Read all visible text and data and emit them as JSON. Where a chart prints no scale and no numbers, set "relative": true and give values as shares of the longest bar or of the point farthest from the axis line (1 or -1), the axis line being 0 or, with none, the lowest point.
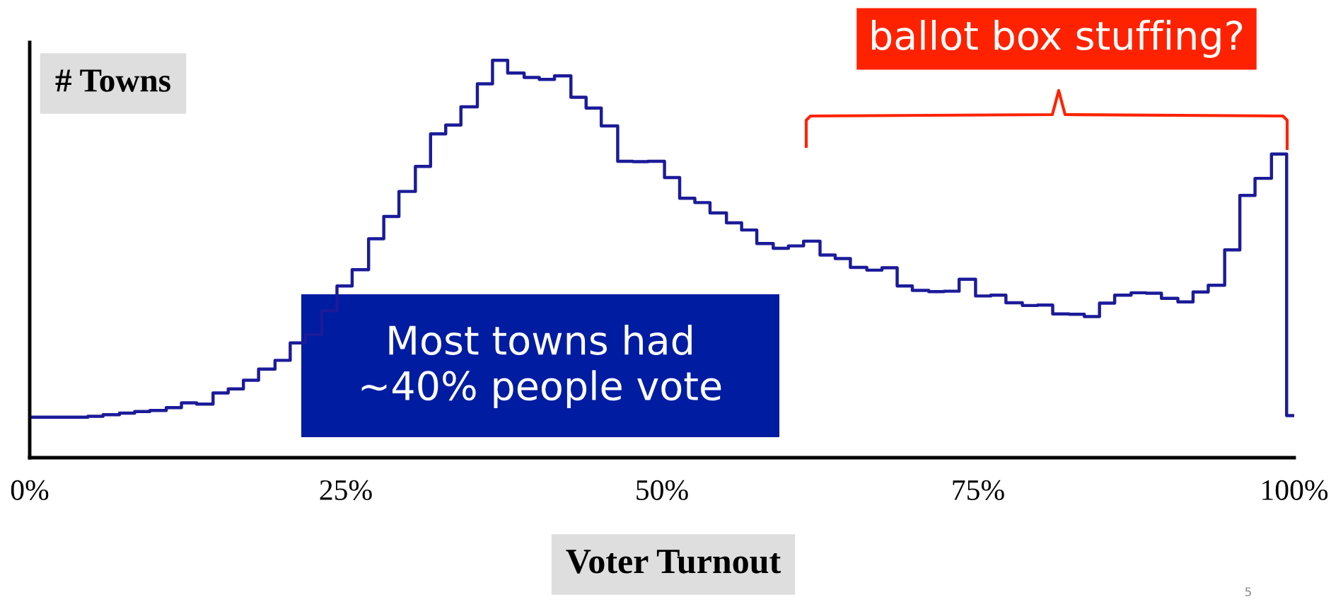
{
  "chart_data": {
    "type": "step",
    "relative": true,
    "xlabel": "Voter Turnout",
    "ylabel": "# Towns",
    "color": "#1b1b99",
    "xlim": [
      0,
      100
    ],
    "xticks": [
      {
        "value": 0,
        "label": "0%"
      },
      {
        "value": 25,
        "label": "25%"
      },
      {
        "value": 50,
        "label": "50%"
      },
      {
        "value": 75,
        "label": "75%"
      },
      {
        "value": 100,
        "label": "100%"
      }
    ],
    "tick_labels": "x",
    "x": [
      0,
      4.6,
      5.8,
      7.1,
      8.3,
      9.5,
      10.8,
      12.0,
      13.2,
      14.5,
      15.7,
      16.9,
      18.1,
      19.4,
      20.6,
      21.8,
      23.1,
      24.3,
      25.5,
      26.8,
      28.0,
      29.2,
      30.5,
      31.7,
      32.9,
      34.1,
      35.4,
      36.6,
      37.8,
      39.1,
      40.3,
      41.5,
      42.8,
      44.0,
      45.2,
      46.5,
      47.7,
      48.9,
      50.2,
      51.4,
      52.6,
      53.8,
      55.1,
      56.3,
      57.5,
      58.8,
      60.0,
      61.2,
      62.5,
      63.7,
      64.9,
      66.2,
      67.4,
      68.6,
      69.8,
      71.1,
      72.3,
      73.5,
      74.8,
      76.0,
      77.2,
      78.5,
      79.7,
      80.9,
      82.2,
      83.4,
      84.6,
      85.8,
      87.1,
      88.3,
      89.5,
      90.8,
      92.0,
      93.2,
      94.5,
      95.7,
      96.9,
      98.2,
      99.4,
      100
    ],
    "values": [
      0.102,
      0.104,
      0.108,
      0.112,
      0.116,
      0.119,
      0.126,
      0.138,
      0.135,
      0.163,
      0.173,
      0.195,
      0.223,
      0.245,
      0.289,
      0.31,
      0.37,
      0.432,
      0.473,
      0.551,
      0.607,
      0.67,
      0.733,
      0.815,
      0.837,
      0.883,
      0.941,
      1.0,
      0.968,
      0.957,
      0.952,
      0.961,
      0.907,
      0.88,
      0.835,
      0.746,
      0.745,
      0.746,
      0.705,
      0.653,
      0.642,
      0.616,
      0.591,
      0.573,
      0.539,
      0.527,
      0.533,
      0.545,
      0.51,
      0.501,
      0.479,
      0.472,
      0.478,
      0.432,
      0.421,
      0.418,
      0.419,
      0.449,
      0.407,
      0.409,
      0.39,
      0.383,
      0.384,
      0.362,
      0.361,
      0.355,
      0.389,
      0.409,
      0.415,
      0.414,
      0.401,
      0.392,
      0.417,
      0.434,
      0.523,
      0.66,
      0.703,
      0.764,
      0.106,
      0.106
    ],
    "annotations": [
      "Most towns had\n~40% people vote",
      "ballot box stuffing?",
      "5"
    ]
  }
}
